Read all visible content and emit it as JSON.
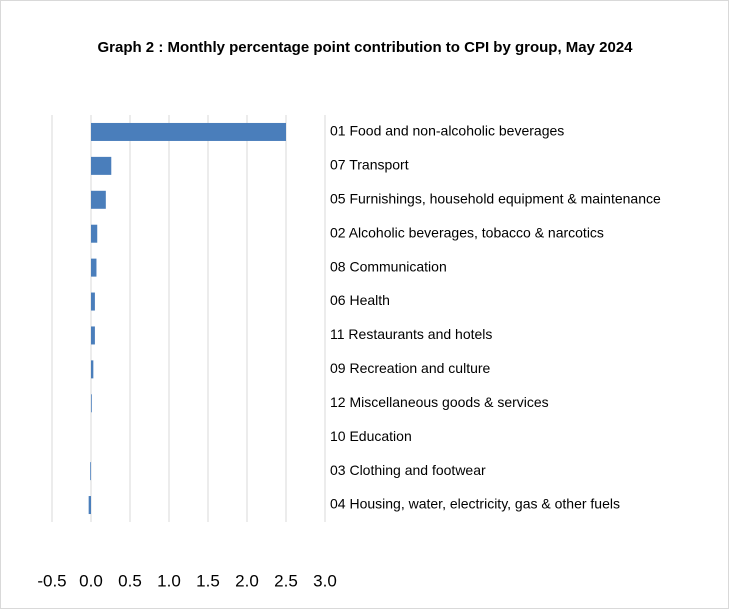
{
  "chart_data": {
    "type": "barh",
    "title": "Graph 2 : Monthly percentage point contribution to CPI by group, May 2024",
    "categories": [
      "01 Food and non-alcoholic beverages",
      "07 Transport",
      "05 Furnishings, household equipment & maintenance",
      "02 Alcoholic beverages, tobacco & narcotics",
      "08 Communication",
      "06 Health",
      "11 Restaurants and hotels",
      "09 Recreation and culture",
      "12 Miscellaneous goods & services",
      "10 Education",
      "03 Clothing and footwear",
      "04 Housing, water, electricity, gas & other fuels"
    ],
    "values": [
      2.5,
      0.26,
      0.19,
      0.08,
      0.07,
      0.05,
      0.05,
      0.03,
      0.01,
      0.0,
      -0.01,
      -0.03
    ],
    "color": "#4a7ebb",
    "xlim": [
      -0.5,
      3.0
    ],
    "xticks": [
      -0.5,
      {
        "value": 0.0,
        "label": "0.0"
      },
      0.5,
      {
        "value": 1.0,
        "label": "1.0"
      },
      1.5,
      {
        "value": 2.0,
        "label": "2.0"
      },
      2.5,
      {
        "value": 3.0,
        "label": "3.0"
      }
    ],
    "grid": true
  }
}
